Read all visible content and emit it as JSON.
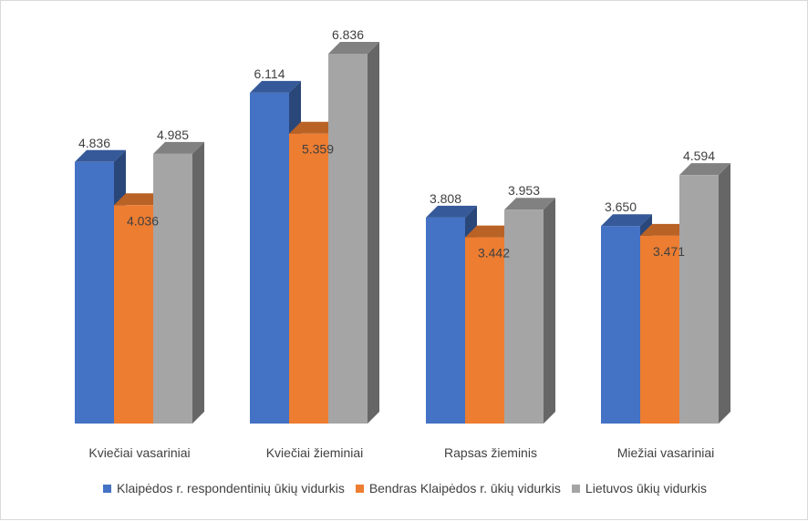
{
  "chart_data": {
    "type": "bar",
    "style": "3d-clustered",
    "categories": [
      "Kviečiai vasariniai",
      "Kviečiai žieminiai",
      "Rapsas žieminis",
      "Miežiai vasariniai"
    ],
    "series": [
      {
        "name": "Klaipėdos r. respondentinių ūkių vidurkis",
        "color": "#4472c4",
        "values": [
          4.836,
          6.114,
          3.808,
          3.65
        ],
        "labels": [
          "4.836",
          "6.114",
          "3.808",
          "3.650"
        ]
      },
      {
        "name": "Bendras Klaipėdos r. ūkių vidurkis",
        "color": "#ed7d31",
        "values": [
          4.036,
          5.359,
          3.442,
          3.471
        ],
        "labels": [
          "4.036",
          "5.359",
          "3.442",
          "3.471"
        ]
      },
      {
        "name": "Lietuvos ūkių vidurkis",
        "color": "#a5a5a5",
        "values": [
          4.985,
          6.836,
          3.953,
          4.594
        ],
        "labels": [
          "4.985",
          "6.836",
          "3.953",
          "4.594"
        ]
      }
    ],
    "ylim": [
      0,
      6.836
    ],
    "grid": false,
    "y_axis_shown": false,
    "legend_position": "bottom"
  }
}
